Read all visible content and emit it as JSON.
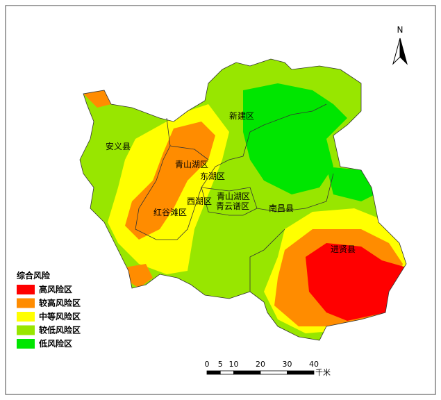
{
  "north": "N",
  "districts": [
    "新建区",
    "安义县",
    "青山湖区",
    "东湖区",
    "西湖区",
    "青山湖区",
    "青云谱区",
    "红谷滩区",
    "南昌县",
    "进贤县"
  ],
  "legend": {
    "title": "综合风险",
    "items": [
      {
        "label": "高风险区",
        "color": "#ff0000"
      },
      {
        "label": "较高风险区",
        "color": "#ff8c00"
      },
      {
        "label": "中等风险区",
        "color": "#ffff00"
      },
      {
        "label": "较低风险区",
        "color": "#98e600"
      },
      {
        "label": "低风险区",
        "color": "#00e600"
      }
    ]
  },
  "scale": {
    "ticks": [
      0,
      5,
      10,
      20,
      30,
      40
    ],
    "unit": "千米"
  }
}
